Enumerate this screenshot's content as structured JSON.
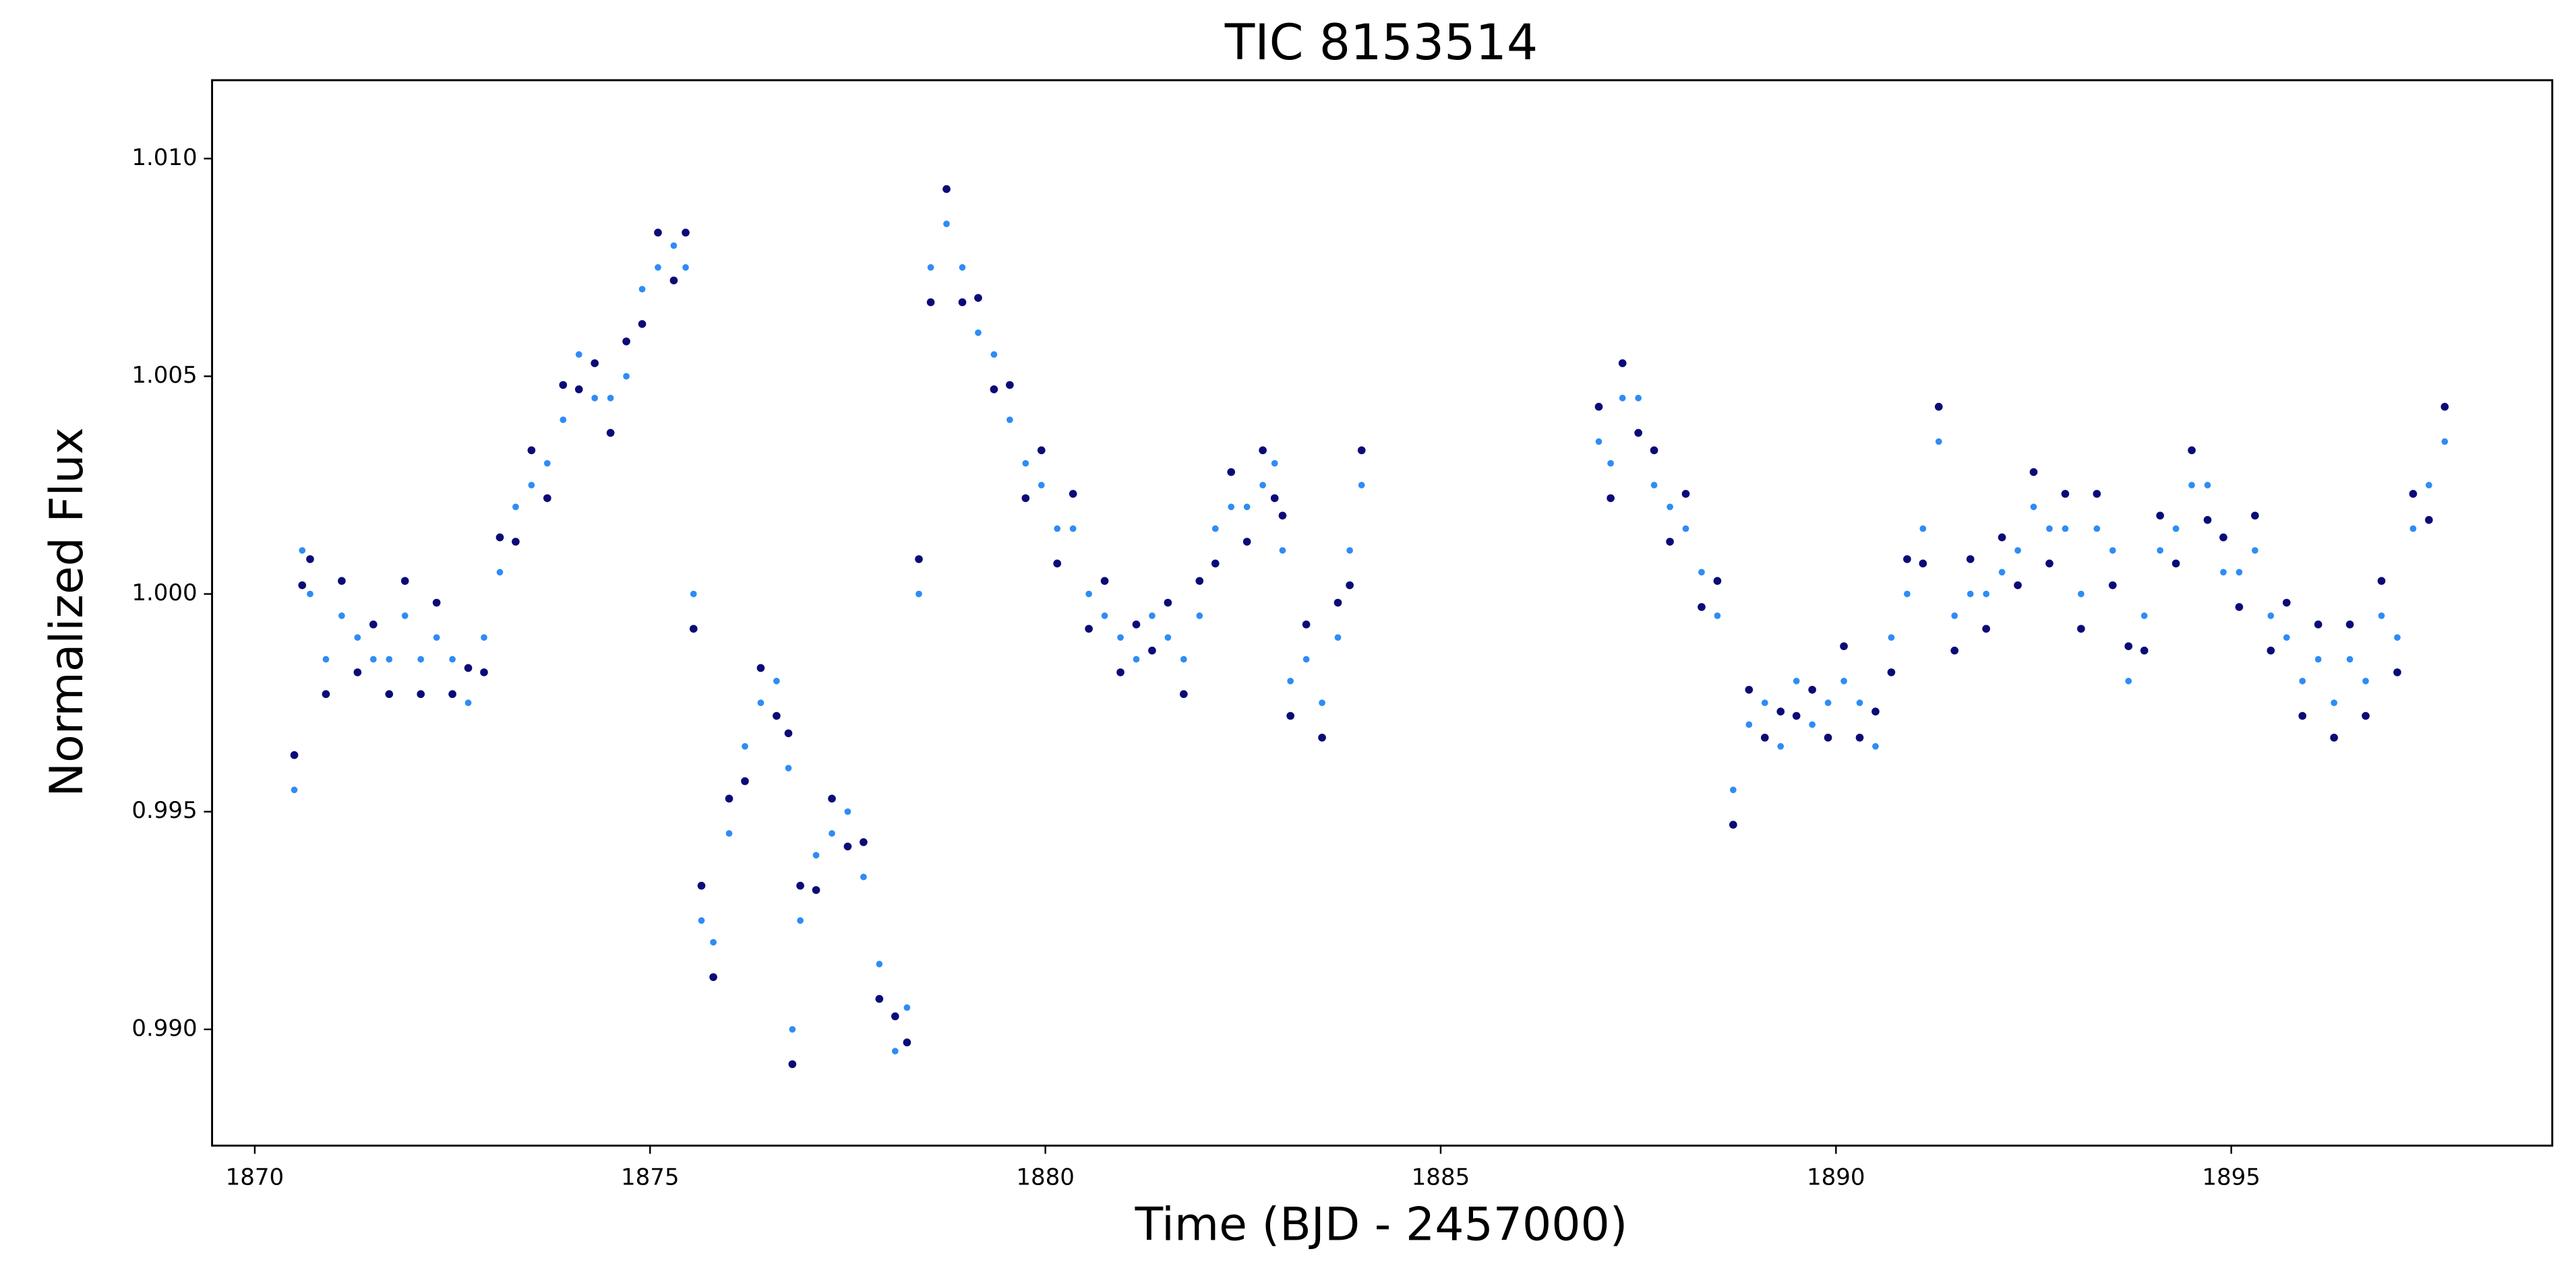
{
  "chart_data": {
    "type": "scatter",
    "title": "TIC 8153514",
    "x_label": "Time (BJD - 2457000)",
    "y_label": "Normalized Flux",
    "xlim": [
      1869.46,
      1899.06
    ],
    "ylim": [
      0.98733,
      1.0118
    ],
    "xticks": [
      1870,
      1875,
      1880,
      1885,
      1890,
      1895
    ],
    "yticks": [
      {
        "value": 0.99,
        "label": "0.990"
      },
      0.995,
      {
        "value": 1,
        "label": "1.000"
      },
      1.005,
      {
        "value": 1.01,
        "label": "1.010"
      }
    ],
    "grid": false,
    "x": [
      1870.5,
      1870.6,
      1870.7,
      1870.9,
      1871.1,
      1871.3,
      1871.5,
      1871.7,
      1871.9,
      1872.1,
      1872.3,
      1872.5,
      1872.7,
      1872.9,
      1873.1,
      1873.3,
      1873.5,
      1873.7,
      1873.9,
      1874.1,
      1874.3,
      1874.5,
      1874.7,
      1874.9,
      1875.1,
      1875.3,
      1875.45,
      1875.55,
      1875.65,
      1875.8,
      1876.0,
      1876.2,
      1876.4,
      1876.6,
      1876.75,
      1876.8,
      1876.9,
      1877.1,
      1877.3,
      1877.5,
      1877.7,
      1877.9,
      1878.1,
      1878.25,
      1878.4,
      1878.55,
      1878.75,
      1878.95,
      1879.15,
      1879.35,
      1879.55,
      1879.75,
      1879.95,
      1880.15,
      1880.35,
      1880.55,
      1880.75,
      1880.95,
      1881.15,
      1881.35,
      1881.55,
      1881.75,
      1881.95,
      1882.15,
      1882.35,
      1882.55,
      1882.75,
      1882.9,
      1883.0,
      1883.1,
      1883.3,
      1883.5,
      1883.7,
      1883.85,
      1884.0,
      1887.0,
      1887.15,
      1887.3,
      1887.5,
      1887.7,
      1887.9,
      1888.1,
      1888.3,
      1888.5,
      1888.7,
      1888.9,
      1889.1,
      1889.3,
      1889.5,
      1889.7,
      1889.9,
      1890.1,
      1890.3,
      1890.5,
      1890.7,
      1890.9,
      1891.1,
      1891.3,
      1891.5,
      1891.7,
      1891.9,
      1892.1,
      1892.3,
      1892.5,
      1892.7,
      1892.9,
      1893.1,
      1893.3,
      1893.5,
      1893.7,
      1893.9,
      1894.1,
      1894.3,
      1894.5,
      1894.7,
      1894.9,
      1895.1,
      1895.3,
      1895.5,
      1895.7,
      1895.9,
      1896.1,
      1896.3,
      1896.5,
      1896.7,
      1896.9,
      1897.1,
      1897.3,
      1897.5,
      1897.7
    ],
    "series": [
      {
        "color": "#0b0b78",
        "size": 2.4,
        "values": [
          0.9963,
          1.0002,
          1.0008,
          0.9977,
          1.0003,
          0.9982,
          0.9993,
          0.9977,
          1.0003,
          0.9977,
          0.9998,
          0.9977,
          0.9983,
          0.9982,
          1.0013,
          1.0012,
          1.0033,
          1.0022,
          1.0048,
          1.0047,
          1.0053,
          1.0037,
          1.0058,
          1.0062,
          1.0083,
          1.0072,
          1.0083,
          0.9992,
          0.9933,
          0.9912,
          0.9953,
          0.9957,
          0.9983,
          0.9972,
          0.9968,
          0.9892,
          0.9933,
          0.9932,
          0.9953,
          0.9942,
          0.9943,
          0.9907,
          0.9903,
          0.9897,
          1.0008,
          1.0067,
          1.0093,
          1.0067,
          1.0068,
          1.0047,
          1.0048,
          1.0022,
          1.0033,
          1.0007,
          1.0023,
          0.9992,
          1.0003,
          0.9982,
          0.9993,
          0.9987,
          0.9998,
          0.9977,
          1.0003,
          1.0007,
          1.0028,
          1.0012,
          1.0033,
          1.0022,
          1.0018,
          0.9972,
          0.9993,
          0.9967,
          0.9998,
          1.0002,
          1.0033,
          1.0043,
          1.0022,
          1.0053,
          1.0037,
          1.0033,
          1.0012,
          1.0023,
          0.9997,
          1.0003,
          0.9947,
          0.9978,
          0.9967,
          0.9973,
          0.9972,
          0.9978,
          0.9967,
          0.9988,
          0.9967,
          0.9973,
          0.9982,
          1.0008,
          1.0007,
          1.0043,
          0.9987,
          1.0008,
          0.9992,
          1.0013,
          1.0002,
          1.0028,
          1.0007,
          1.0023,
          0.9992,
          1.0023,
          1.0002,
          0.9988,
          0.9987,
          1.0018,
          1.0007,
          1.0033,
          1.0017,
          1.0013,
          0.9997,
          1.0018,
          0.9987,
          0.9998,
          0.9972,
          0.9993,
          0.9967,
          0.9993,
          0.9972,
          1.0003,
          0.9982,
          1.0023,
          1.0017,
          1.0043
        ]
      },
      {
        "color": "#2e8cf5",
        "size": 2,
        "values": [
          0.9955,
          1.001,
          1.0,
          0.9985,
          0.9995,
          0.999,
          0.9985,
          0.9985,
          0.9995,
          0.9985,
          0.999,
          0.9985,
          0.9975,
          0.999,
          1.0005,
          1.002,
          1.0025,
          1.003,
          1.004,
          1.0055,
          1.0045,
          1.0045,
          1.005,
          1.007,
          1.0075,
          1.008,
          1.0075,
          1.0,
          0.9925,
          0.992,
          0.9945,
          0.9965,
          0.9975,
          0.998,
          0.996,
          0.99,
          0.9925,
          0.994,
          0.9945,
          0.995,
          0.9935,
          0.9915,
          0.9895,
          0.9905,
          1.0,
          1.0075,
          1.0085,
          1.0075,
          1.006,
          1.0055,
          1.004,
          1.003,
          1.0025,
          1.0015,
          1.0015,
          1.0,
          0.9995,
          0.999,
          0.9985,
          0.9995,
          0.999,
          0.9985,
          0.9995,
          1.0015,
          1.002,
          1.002,
          1.0025,
          1.003,
          1.001,
          0.998,
          0.9985,
          0.9975,
          0.999,
          1.001,
          1.0025,
          1.0035,
          1.003,
          1.0045,
          1.0045,
          1.0025,
          1.002,
          1.0015,
          1.0005,
          0.9995,
          0.9955,
          0.997,
          0.9975,
          0.9965,
          0.998,
          0.997,
          0.9975,
          0.998,
          0.9975,
          0.9965,
          0.999,
          1.0,
          1.0015,
          1.0035,
          0.9995,
          1.0,
          1.0,
          1.0005,
          1.001,
          1.002,
          1.0015,
          1.0015,
          1.0,
          1.0015,
          1.001,
          0.998,
          0.9995,
          1.001,
          1.0015,
          1.0025,
          1.0025,
          1.0005,
          1.0005,
          1.001,
          0.9995,
          0.999,
          0.998,
          0.9985,
          0.9975,
          0.9985,
          0.998,
          0.9995,
          0.999,
          1.0015,
          1.0025,
          1.0035
        ]
      }
    ]
  }
}
